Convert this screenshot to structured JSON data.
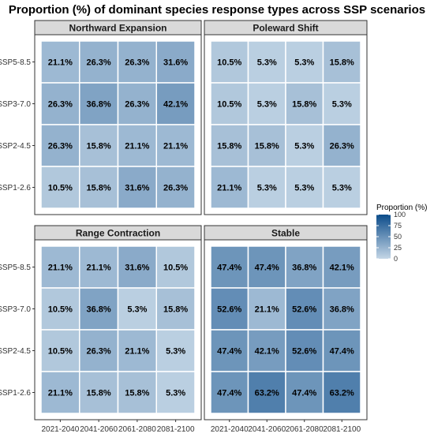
{
  "chart_data": {
    "type": "heatmap",
    "title": "Proportion (%) of dominant species response types across SSP scenarios",
    "x_categories": [
      "2021-2040",
      "2041-2060",
      "2061-2080",
      "2081-2100"
    ],
    "y_categories": [
      "SSP5-8.5",
      "SSP3-7.0",
      "SSP2-4.5",
      "SSP1-2.6"
    ],
    "legend": {
      "title": "Proportion (%)",
      "range": [
        0,
        100
      ],
      "ticks": [
        "100",
        "75",
        "50",
        "25",
        "0"
      ],
      "color_low": "#c4d6e6",
      "color_high": "#0c4c8a",
      "placement": "right"
    },
    "panels": [
      {
        "name": "Northward Expansion",
        "values": [
          [
            21.1,
            26.3,
            26.3,
            31.6
          ],
          [
            26.3,
            36.8,
            26.3,
            42.1
          ],
          [
            26.3,
            15.8,
            21.1,
            21.1
          ],
          [
            10.5,
            15.8,
            31.6,
            26.3
          ]
        ],
        "labels": [
          [
            "21.1%",
            "26.3%",
            "26.3%",
            "31.6%"
          ],
          [
            "26.3%",
            "36.8%",
            "26.3%",
            "42.1%"
          ],
          [
            "26.3%",
            "15.8%",
            "21.1%",
            "21.1%"
          ],
          [
            "10.5%",
            "15.8%",
            "31.6%",
            "26.3%"
          ]
        ]
      },
      {
        "name": "Poleward Shift",
        "values": [
          [
            10.5,
            5.3,
            5.3,
            15.8
          ],
          [
            10.5,
            5.3,
            15.8,
            5.3
          ],
          [
            15.8,
            15.8,
            5.3,
            26.3
          ],
          [
            21.1,
            5.3,
            5.3,
            5.3
          ]
        ],
        "labels": [
          [
            "10.5%",
            "5.3%",
            "5.3%",
            "15.8%"
          ],
          [
            "10.5%",
            "5.3%",
            "15.8%",
            "5.3%"
          ],
          [
            "15.8%",
            "15.8%",
            "5.3%",
            "26.3%"
          ],
          [
            "21.1%",
            "5.3%",
            "5.3%",
            "5.3%"
          ]
        ]
      },
      {
        "name": "Range Contraction",
        "values": [
          [
            21.1,
            21.1,
            31.6,
            10.5
          ],
          [
            10.5,
            36.8,
            5.3,
            15.8
          ],
          [
            10.5,
            26.3,
            21.1,
            5.3
          ],
          [
            21.1,
            15.8,
            15.8,
            5.3
          ]
        ],
        "labels": [
          [
            "21.1%",
            "21.1%",
            "31.6%",
            "10.5%"
          ],
          [
            "10.5%",
            "36.8%",
            "5.3%",
            "15.8%"
          ],
          [
            "10.5%",
            "26.3%",
            "21.1%",
            "5.3%"
          ],
          [
            "21.1%",
            "15.8%",
            "15.8%",
            "5.3%"
          ]
        ]
      },
      {
        "name": "Stable",
        "values": [
          [
            47.4,
            47.4,
            36.8,
            42.1
          ],
          [
            52.6,
            21.1,
            52.6,
            36.8
          ],
          [
            47.4,
            42.1,
            52.6,
            47.4
          ],
          [
            47.4,
            63.2,
            47.4,
            63.2
          ]
        ],
        "labels": [
          [
            "47.4%",
            "47.4%",
            "36.8%",
            "42.1%"
          ],
          [
            "52.6%",
            "21.1%",
            "52.6%",
            "36.8%"
          ],
          [
            "47.4%",
            "42.1%",
            "52.6%",
            "47.4%"
          ],
          [
            "47.4%",
            "63.2%",
            "47.4%",
            "63.2%"
          ]
        ]
      }
    ]
  }
}
